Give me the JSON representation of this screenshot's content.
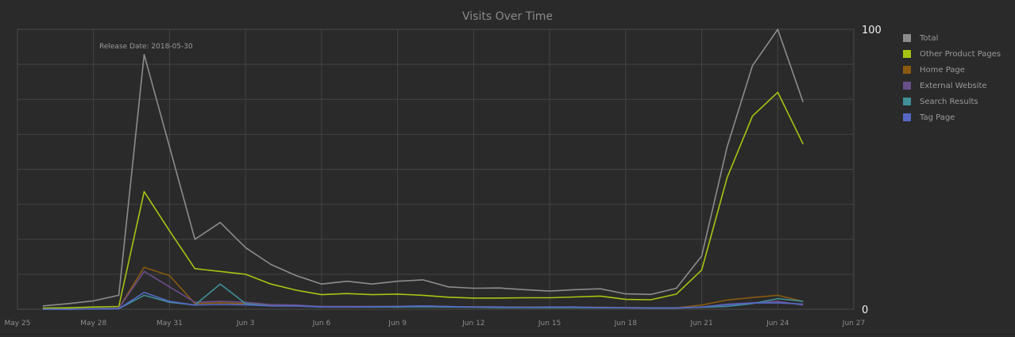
{
  "chart_data": {
    "type": "line",
    "title": "Visits Over Time",
    "xlabel": "",
    "ylabel": "",
    "x_start": "2018-05-26",
    "x": [
      "May 26",
      "May 27",
      "May 28",
      "May 29",
      "May 30",
      "May 31",
      "Jun 1",
      "Jun 2",
      "Jun 3",
      "Jun 4",
      "Jun 5",
      "Jun 6",
      "Jun 7",
      "Jun 8",
      "Jun 9",
      "Jun 10",
      "Jun 11",
      "Jun 12",
      "Jun 13",
      "Jun 14",
      "Jun 15",
      "Jun 16",
      "Jun 17",
      "Jun 18",
      "Jun 19",
      "Jun 20",
      "Jun 21",
      "Jun 22",
      "Jun 23",
      "Jun 24",
      "Jun 25"
    ],
    "xlim_days": [
      "May 25",
      "Jun 27"
    ],
    "x_ticks": [
      "May 25",
      "May 28",
      "May 31",
      "Jun 3",
      "Jun 6",
      "Jun 9",
      "Jun 12",
      "Jun 15",
      "Jun 18",
      "Jun 21",
      "Jun 24",
      "Jun 27"
    ],
    "ylim": [
      0,
      100
    ],
    "y_tick_labels": [
      "0",
      "100"
    ],
    "grid": true,
    "legend_position": "right",
    "annotation": {
      "text": "Release Date: 2018-05-30",
      "date": "May 30"
    },
    "series": [
      {
        "name": "Total",
        "color": "#8c8c8c",
        "values": [
          1.2,
          2,
          3,
          5,
          91,
          58,
          25,
          31,
          22,
          16,
          12,
          9,
          10,
          9,
          10,
          10.5,
          8,
          7.5,
          7.6,
          7,
          6.5,
          7,
          7.3,
          5.5,
          5.3,
          7.5,
          19,
          58,
          87,
          100,
          74
        ]
      },
      {
        "name": "Other Product Pages",
        "color": "#a8c412",
        "values": [
          0.4,
          0.5,
          0.8,
          1,
          42,
          28,
          14.5,
          13.5,
          12.5,
          9,
          6.8,
          5.2,
          5.6,
          5.2,
          5.4,
          5,
          4.3,
          4,
          4,
          4.1,
          4.1,
          4.4,
          4.7,
          3.5,
          3.4,
          5.4,
          14,
          47,
          69,
          77.5,
          59
        ]
      },
      {
        "name": "Home Page",
        "color": "#8a5a10",
        "values": [
          0,
          0,
          0.2,
          0.4,
          15,
          12,
          2,
          2.3,
          2,
          1.5,
          1.3,
          1,
          1,
          1,
          1,
          1,
          0.9,
          0.9,
          0.8,
          0.8,
          0.8,
          0.8,
          0.7,
          0.6,
          0.5,
          0.5,
          1.5,
          3.3,
          4.2,
          5,
          2.8
        ]
      },
      {
        "name": "External Website",
        "color": "#6a4e8a",
        "values": [
          0,
          0,
          0.2,
          0.4,
          13.5,
          8,
          2.5,
          2.8,
          2.5,
          1.7,
          1.5,
          1,
          1,
          1,
          1,
          1.2,
          1,
          0.8,
          0.8,
          0.7,
          0.7,
          0.8,
          0.6,
          0.6,
          0.5,
          0.5,
          0.8,
          1.8,
          2.3,
          2.8,
          1.5
        ]
      },
      {
        "name": "Search Results",
        "color": "#3f8e98",
        "values": [
          0,
          0,
          0.1,
          0.2,
          5,
          2.5,
          1.5,
          9,
          2,
          1.2,
          1.2,
          0.8,
          0.8,
          0.8,
          0.8,
          0.9,
          0.8,
          0.7,
          0.6,
          0.6,
          0.6,
          0.6,
          0.5,
          0.5,
          0.4,
          0.4,
          0.7,
          1,
          2,
          3.8,
          2.8
        ]
      },
      {
        "name": "Tag Page",
        "color": "#5468c4",
        "values": [
          0,
          0,
          0.1,
          0.2,
          6,
          2.8,
          1.5,
          1.7,
          1.6,
          1.2,
          1.2,
          0.8,
          0.8,
          0.9,
          1,
          1.2,
          1,
          0.8,
          0.8,
          0.7,
          0.8,
          0.8,
          0.6,
          0.5,
          0.4,
          0.4,
          0.8,
          1.6,
          2.2,
          2.3,
          1.8
        ]
      }
    ]
  }
}
